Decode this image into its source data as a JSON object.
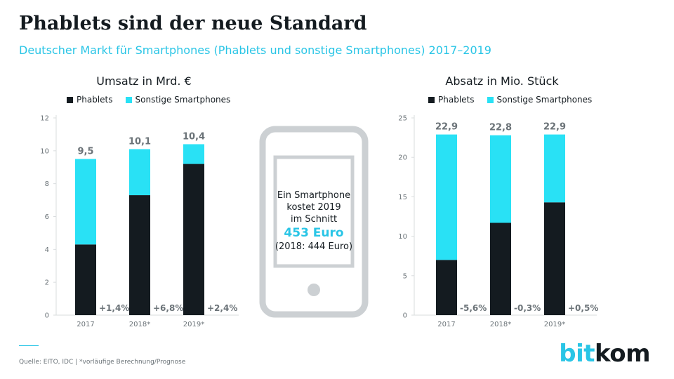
{
  "header": {
    "title": "Phablets sind der neue Standard",
    "subtitle": "Deutscher Markt für Smartphones (Phablets und sonstige Smartphones) 2017–2019"
  },
  "colors": {
    "phablets": "#141b20",
    "sonstige": "#29e1f5",
    "accent": "#29c5e6",
    "grid": "#d9dcde"
  },
  "phone": {
    "line1": "Ein Smartphone",
    "line2": "kostet 2019",
    "line3": "im Schnitt",
    "price": "453 Euro",
    "note": "(2018: 444 Euro)"
  },
  "footer": {
    "source": "Quelle: EITO, IDC | *vorläufige Berechnung/Prognose",
    "logo_part1": "bit",
    "logo_part2": "kom"
  },
  "chart_data": [
    {
      "type": "bar",
      "stacked": true,
      "title": "Umsatz in Mrd. €",
      "categories": [
        "2017",
        "2018*",
        "2019*"
      ],
      "series": [
        {
          "name": "Phablets",
          "values": [
            4.3,
            7.3,
            9.2
          ]
        },
        {
          "name": "Sonstige Smartphones",
          "values": [
            5.2,
            2.8,
            1.2
          ]
        }
      ],
      "totals": [
        "9,5",
        "10,1",
        "10,4"
      ],
      "growth": [
        "+1,4%",
        "+6,8%",
        "+2,4%"
      ],
      "ylim": [
        0,
        12
      ],
      "yticks": [
        0,
        2,
        4,
        6,
        8,
        10,
        12
      ],
      "legend": "top",
      "grid": false
    },
    {
      "type": "bar",
      "stacked": true,
      "title": "Absatz in Mio. Stück",
      "categories": [
        "2017",
        "2018*",
        "2019*"
      ],
      "series": [
        {
          "name": "Phablets",
          "values": [
            7.0,
            11.7,
            14.3
          ]
        },
        {
          "name": "Sonstige Smartphones",
          "values": [
            15.9,
            11.1,
            8.6
          ]
        }
      ],
      "totals": [
        "22,9",
        "22,8",
        "22,9"
      ],
      "growth": [
        "-5,6%",
        "-0,3%",
        "+0,5%"
      ],
      "ylim": [
        0,
        25
      ],
      "yticks": [
        0,
        5,
        10,
        15,
        20,
        25
      ],
      "legend": "top",
      "grid": false
    }
  ]
}
